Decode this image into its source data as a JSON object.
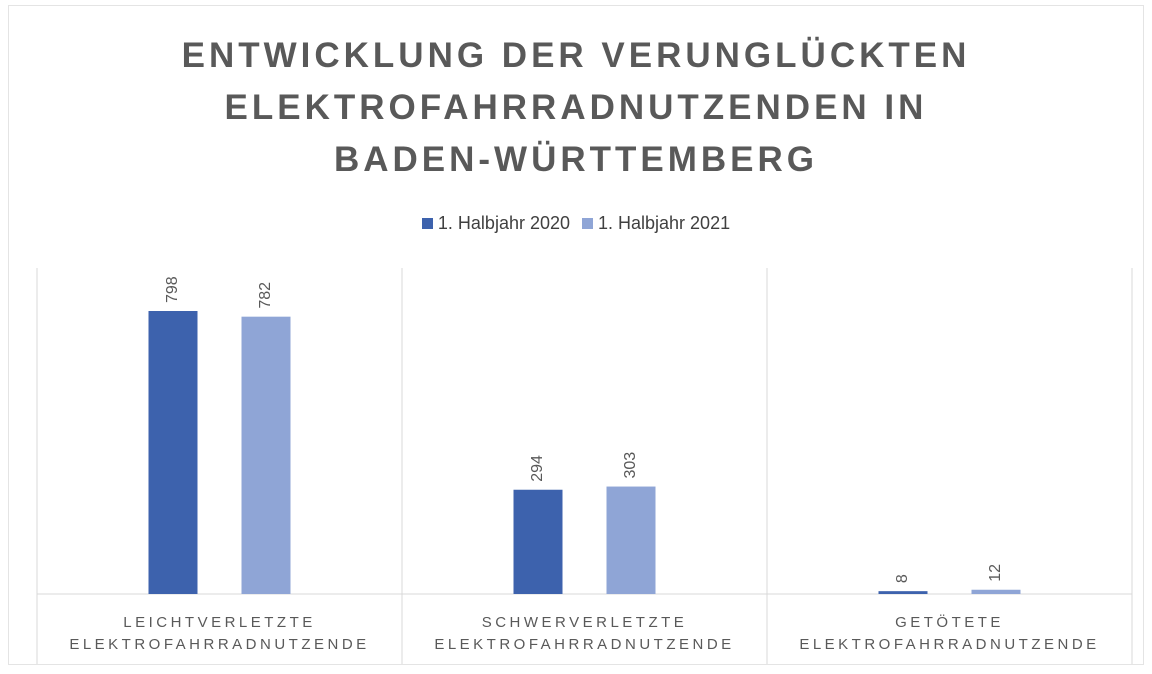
{
  "chart_data": {
    "type": "bar",
    "title": "ENTWICKLUNG DER VERUNGLÜCKTEN ELEKTROFAHRRADNUTZENDEN IN BADEN-WÜRTTEMBERG",
    "categories": [
      "LEICHTVERLETZTE ELEKTROFAHRRADNUTZENDE",
      "SCHWERVERLETZTE ELEKTROFAHRRADNUTZENDE",
      "GETÖTETE ELEKTROFAHRRADNUTZENDE"
    ],
    "series": [
      {
        "name": "1. Halbjahr 2020",
        "color": "#3d62ad",
        "values": [
          798,
          294,
          8
        ]
      },
      {
        "name": "1. Halbjahr 2021",
        "color": "#8fa5d6",
        "values": [
          782,
          303,
          12
        ]
      }
    ],
    "legend": "top"
  }
}
